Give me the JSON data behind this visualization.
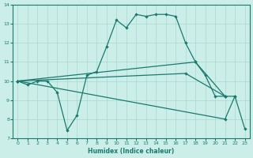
{
  "xlabel": "Humidex (Indice chaleur)",
  "bg_color": "#cceee8",
  "grid_color": "#a8d8d0",
  "line_color": "#1a7a6e",
  "xlim": [
    -0.5,
    23.5
  ],
  "ylim": [
    7,
    14
  ],
  "yticks": [
    7,
    8,
    9,
    10,
    11,
    12,
    13,
    14
  ],
  "xticks": [
    0,
    1,
    2,
    3,
    4,
    5,
    6,
    7,
    8,
    9,
    10,
    11,
    12,
    13,
    14,
    15,
    16,
    17,
    18,
    19,
    20,
    21,
    22,
    23
  ],
  "line1_x": [
    0,
    1,
    2,
    3,
    4,
    5,
    6,
    7,
    8,
    9,
    10,
    11,
    12,
    13,
    14,
    15,
    16,
    17,
    18,
    19,
    20,
    21
  ],
  "line1_y": [
    10.0,
    9.8,
    10.0,
    10.0,
    9.4,
    7.4,
    8.2,
    10.3,
    10.5,
    11.8,
    13.2,
    12.8,
    13.5,
    13.4,
    13.5,
    13.5,
    13.4,
    12.0,
    11.0,
    10.3,
    9.2,
    9.2
  ],
  "line2_x": [
    0,
    18,
    21
  ],
  "line2_y": [
    10.0,
    11.0,
    9.2
  ],
  "line3_x": [
    0,
    17,
    21,
    22
  ],
  "line3_y": [
    10.0,
    10.4,
    9.2,
    9.2
  ],
  "line4_x": [
    0,
    21,
    22,
    23
  ],
  "line4_y": [
    10.0,
    8.0,
    9.2,
    7.5
  ]
}
